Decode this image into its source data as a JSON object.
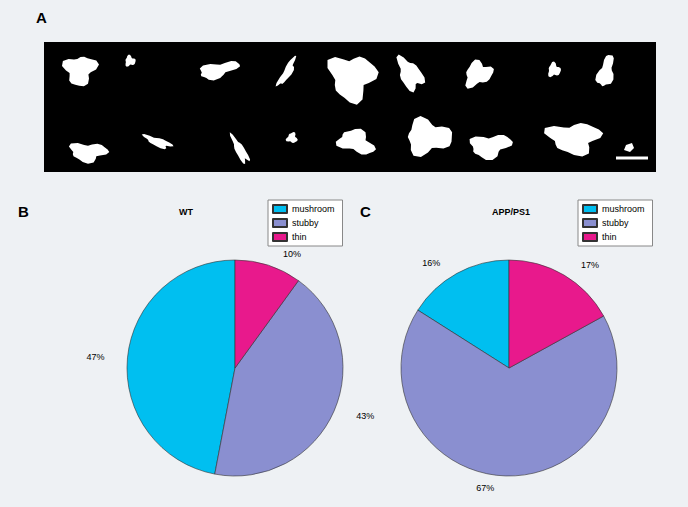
{
  "figure": {
    "panel_label": "A"
  },
  "chart_data": [
    {
      "type": "pie",
      "title": "WT",
      "annotations": [
        "B"
      ],
      "categories": [
        "mushroom",
        "stubby",
        "thin"
      ],
      "values": [
        47,
        43,
        10
      ],
      "value_labels": [
        "47%",
        "43%",
        "10%"
      ],
      "colors": [
        "#00bff0",
        "#8a8fd0",
        "#e8198c"
      ],
      "legend": "upper right",
      "data_labels": true
    },
    {
      "type": "pie",
      "title": "APP/PS1",
      "annotations": [
        "C"
      ],
      "categories": [
        "mushroom",
        "stubby",
        "thin"
      ],
      "values": [
        16,
        67,
        17
      ],
      "value_labels": [
        "16%",
        "67%",
        "17%"
      ],
      "colors": [
        "#00bff0",
        "#8a8fd0",
        "#e8198c"
      ],
      "legend": "upper right",
      "data_labels": true
    }
  ]
}
